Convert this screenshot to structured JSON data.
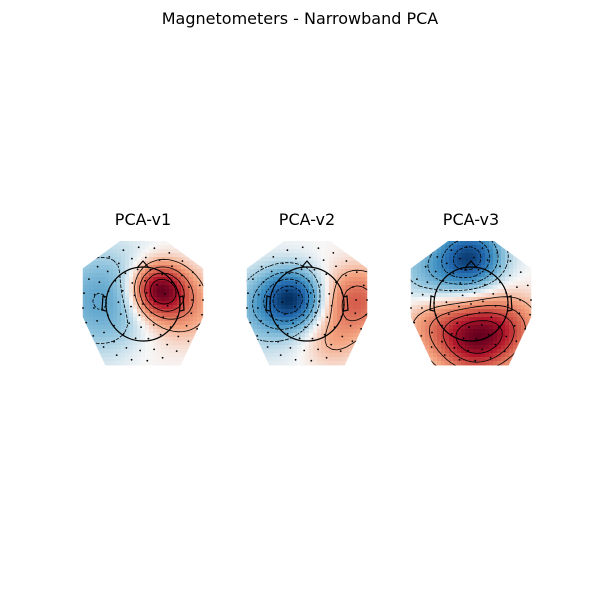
{
  "figure": {
    "title": "Magnetometers - Narrowband PCA"
  },
  "chart_data": [
    {
      "type": "heatmap",
      "title": "PCA-v1",
      "colormap": "RdBu_r",
      "sources": [
        {
          "x": 0.22,
          "y": 0.22,
          "v": 1.0,
          "s": 0.28
        },
        {
          "x": 0.55,
          "y": -0.05,
          "v": 0.35,
          "s": 0.38
        },
        {
          "x": -0.55,
          "y": 0.05,
          "v": -0.45,
          "s": 0.55
        },
        {
          "x": 0.0,
          "y": -0.75,
          "v": 0.05,
          "s": 0.3
        }
      ]
    },
    {
      "type": "heatmap",
      "title": "PCA-v2",
      "colormap": "RdBu_r",
      "sources": [
        {
          "x": -0.22,
          "y": 0.08,
          "v": -1.0,
          "s": 0.3
        },
        {
          "x": -0.65,
          "y": -0.1,
          "v": -0.35,
          "s": 0.45
        },
        {
          "x": 0.72,
          "y": 0.05,
          "v": 0.6,
          "s": 0.35
        },
        {
          "x": 0.35,
          "y": -0.55,
          "v": 0.25,
          "s": 0.3
        }
      ]
    },
    {
      "type": "heatmap",
      "title": "PCA-v3",
      "colormap": "RdBu_r",
      "sources": [
        {
          "x": 0.0,
          "y": 0.72,
          "v": -1.0,
          "s": 0.32
        },
        {
          "x": -0.55,
          "y": 0.45,
          "v": -0.4,
          "s": 0.4
        },
        {
          "x": 0.05,
          "y": -0.55,
          "v": 1.0,
          "s": 0.38
        },
        {
          "x": 0.55,
          "y": -0.35,
          "v": 0.45,
          "s": 0.35
        },
        {
          "x": -0.55,
          "y": -0.25,
          "v": 0.35,
          "s": 0.35
        }
      ]
    }
  ]
}
